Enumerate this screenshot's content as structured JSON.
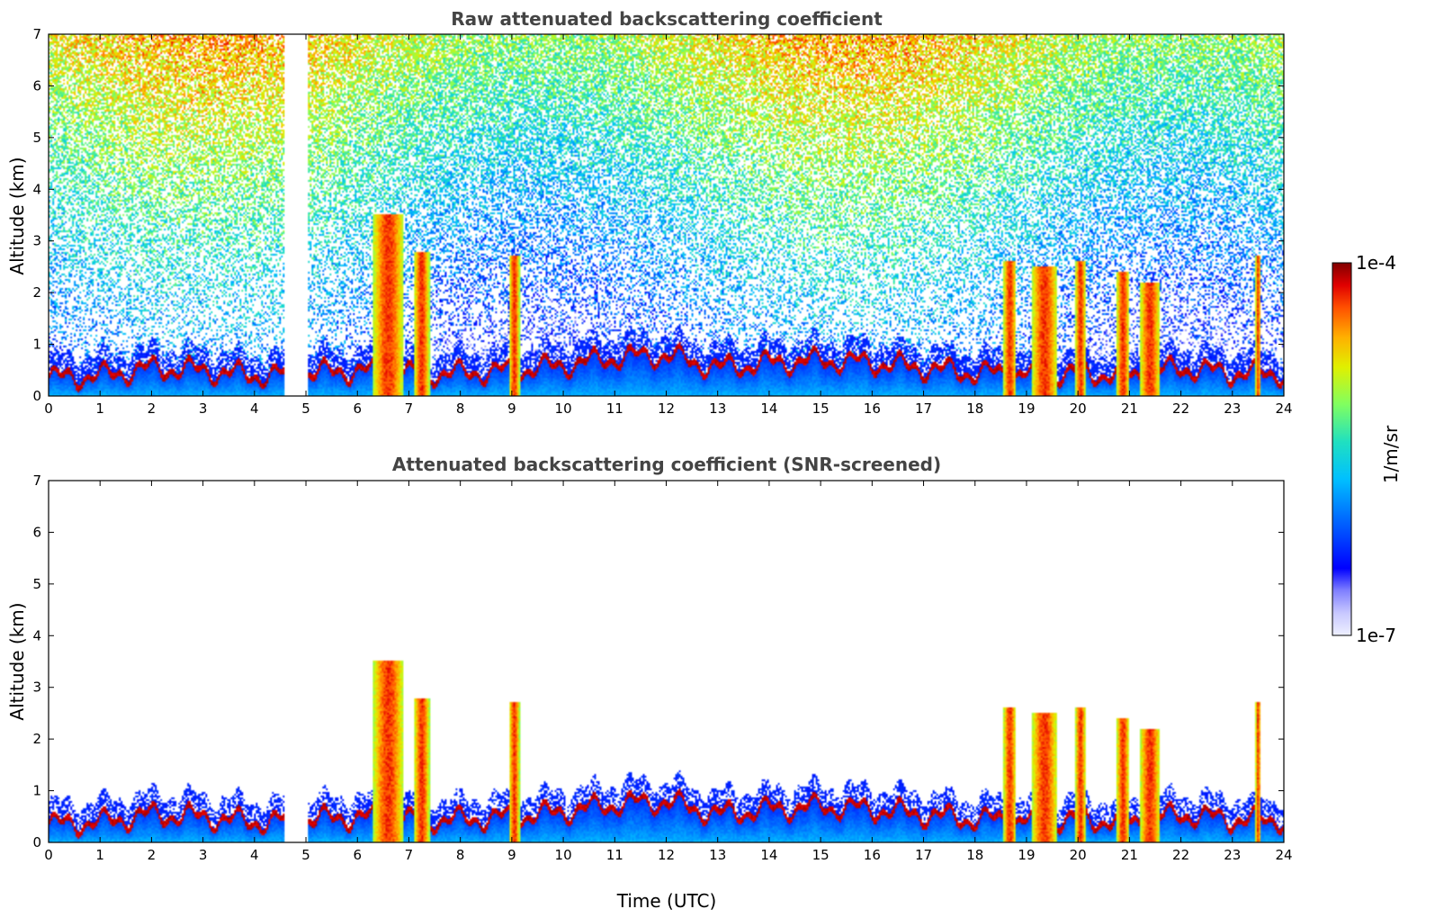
{
  "chart_data": [
    {
      "type": "heatmap",
      "title": "Raw attenuated backscattering coefficient",
      "xlabel": "",
      "ylabel": "Altitude (km)",
      "xlim": [
        0,
        24
      ],
      "ylim": [
        0,
        7
      ],
      "xticks": [
        "0",
        "1",
        "2",
        "3",
        "4",
        "5",
        "6",
        "7",
        "8",
        "9",
        "10",
        "11",
        "12",
        "13",
        "14",
        "15",
        "16",
        "17",
        "18",
        "19",
        "20",
        "21",
        "22",
        "23",
        "24"
      ],
      "yticks": [
        "0",
        "1",
        "2",
        "3",
        "4",
        "5",
        "6",
        "7"
      ],
      "data_gap_utc": [
        4.6,
        5.05
      ],
      "boundary_layer_top_km": [
        [
          0,
          0.4
        ],
        [
          1,
          0.45
        ],
        [
          2,
          0.6
        ],
        [
          3,
          0.55
        ],
        [
          4,
          0.45
        ],
        [
          5,
          0.5
        ],
        [
          6,
          0.55
        ],
        [
          7,
          0.5
        ],
        [
          8,
          0.5
        ],
        [
          9,
          0.55
        ],
        [
          10,
          0.65
        ],
        [
          11,
          0.8
        ],
        [
          12,
          0.85
        ],
        [
          13,
          0.6
        ],
        [
          14,
          0.7
        ],
        [
          15,
          0.75
        ],
        [
          16,
          0.7
        ],
        [
          17,
          0.6
        ],
        [
          18,
          0.5
        ],
        [
          19,
          0.5
        ],
        [
          20,
          0.5
        ],
        [
          21,
          0.45
        ],
        [
          22,
          0.6
        ],
        [
          23,
          0.5
        ],
        [
          24,
          0.5
        ]
      ],
      "cloud_events": [
        {
          "t_start": 6.3,
          "t_end": 6.9,
          "base_km": 0,
          "top_km": 3.5
        },
        {
          "t_start": 7.1,
          "t_end": 7.4,
          "base_km": 0,
          "top_km": 2.8
        },
        {
          "t_start": 8.95,
          "t_end": 9.15,
          "base_km": 0,
          "top_km": 2.7
        },
        {
          "t_start": 18.55,
          "t_end": 18.8,
          "base_km": 0,
          "top_km": 2.6
        },
        {
          "t_start": 19.1,
          "t_end": 19.6,
          "base_km": 0,
          "top_km": 2.5
        },
        {
          "t_start": 19.95,
          "t_end": 20.15,
          "base_km": 0,
          "top_km": 2.6
        },
        {
          "t_start": 20.75,
          "t_end": 21.0,
          "base_km": 0,
          "top_km": 2.4
        },
        {
          "t_start": 21.2,
          "t_end": 21.6,
          "base_km": 0,
          "top_km": 2.2
        },
        {
          "t_start": 23.45,
          "t_end": 23.55,
          "base_km": 0,
          "top_km": 2.7
        }
      ],
      "noise": true
    },
    {
      "type": "heatmap",
      "title": "Attenuated backscattering coefficient (SNR-screened)",
      "xlabel": "Time (UTC)",
      "ylabel": "Altitude (km)",
      "xlim": [
        0,
        24
      ],
      "ylim": [
        0,
        7
      ],
      "xticks": [
        "0",
        "1",
        "2",
        "3",
        "4",
        "5",
        "6",
        "7",
        "8",
        "9",
        "10",
        "11",
        "12",
        "13",
        "14",
        "15",
        "16",
        "17",
        "18",
        "19",
        "20",
        "21",
        "22",
        "23",
        "24"
      ],
      "yticks": [
        "0",
        "1",
        "2",
        "3",
        "4",
        "5",
        "6",
        "7"
      ],
      "data_gap_utc": [
        4.6,
        5.05
      ],
      "noise": false
    }
  ],
  "colorbar": {
    "label": "1/m/sr",
    "max_label": "1e-4",
    "min_label": "1e-7",
    "scale": "log",
    "range": [
      1e-07,
      0.0001
    ]
  }
}
